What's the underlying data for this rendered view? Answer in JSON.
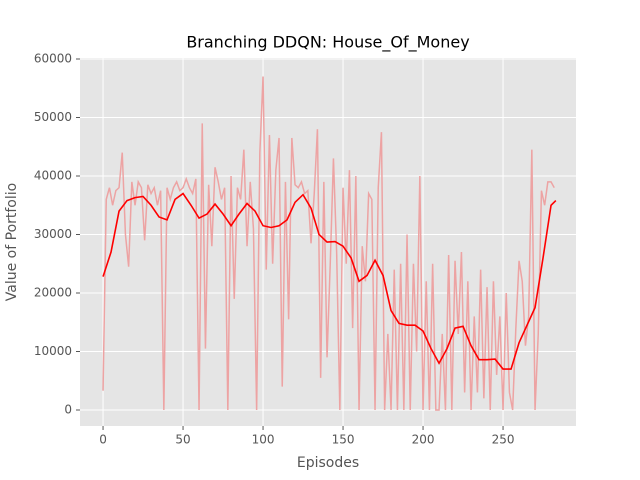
{
  "chart_data": {
    "type": "line",
    "title": "Branching DDQN: House_Of_Money",
    "x_label": "Episodes",
    "y_label": "Value of Portfolio",
    "xlim": [
      -14.4,
      295.6
    ],
    "ylim": [
      -2735,
      60171
    ],
    "xticks": [
      0,
      50,
      100,
      150,
      200,
      250
    ],
    "yticks": [
      0,
      10000,
      20000,
      30000,
      40000,
      50000,
      60000
    ],
    "grid": true,
    "background": "#e5e5e5",
    "series": [
      {
        "color": "#eda3a3",
        "x": [
          0,
          2,
          4,
          6,
          8,
          10,
          12,
          14,
          16,
          18,
          20,
          22,
          24,
          26,
          28,
          30,
          32,
          34,
          36,
          38,
          40,
          42,
          44,
          46,
          48,
          50,
          52,
          54,
          56,
          58,
          60,
          62,
          64,
          66,
          68,
          70,
          72,
          74,
          76,
          78,
          80,
          82,
          84,
          86,
          88,
          90,
          92,
          94,
          96,
          98,
          100,
          102,
          104,
          106,
          108,
          110,
          112,
          114,
          116,
          118,
          120,
          122,
          124,
          126,
          128,
          130,
          132,
          134,
          136,
          138,
          140,
          142,
          144,
          146,
          148,
          150,
          152,
          154,
          156,
          158,
          160,
          162,
          164,
          166,
          168,
          170,
          172,
          174,
          176,
          178,
          180,
          182,
          184,
          186,
          188,
          190,
          192,
          194,
          196,
          198,
          200,
          202,
          204,
          206,
          208,
          210,
          212,
          214,
          216,
          218,
          220,
          222,
          224,
          226,
          228,
          230,
          232,
          234,
          236,
          238,
          240,
          242,
          244,
          246,
          248,
          250,
          252,
          254,
          256,
          258,
          260,
          262,
          264,
          266,
          268,
          270,
          272,
          274,
          276,
          278,
          280,
          282
        ],
        "values": [
          3300,
          36000,
          38000,
          35000,
          37500,
          38000,
          44000,
          30000,
          24500,
          39000,
          35000,
          39000,
          38000,
          29000,
          38500,
          37000,
          38000,
          35000,
          37500,
          0,
          38000,
          36000,
          38000,
          39000,
          37500,
          38000,
          39500,
          38000,
          37000,
          39500,
          0,
          49000,
          10500,
          38500,
          28000,
          41500,
          39000,
          36000,
          38000,
          0,
          40000,
          19000,
          38000,
          36000,
          44500,
          28000,
          39000,
          31000,
          0,
          44000,
          57000,
          24000,
          47000,
          25000,
          41000,
          46500,
          4000,
          39000,
          15500,
          46500,
          38500,
          38000,
          39000,
          37000,
          37500,
          28500,
          37000,
          48000,
          5500,
          39000,
          9000,
          25000,
          43000,
          27000,
          0,
          38000,
          25000,
          41000,
          14000,
          40000,
          0,
          28000,
          22000,
          37000,
          36000,
          0,
          38000,
          47500,
          0,
          13000,
          0,
          24000,
          0,
          25000,
          0,
          30000,
          0,
          25000,
          10000,
          40000,
          0,
          22000,
          0,
          25000,
          0,
          0,
          13000,
          0,
          26500,
          0,
          25500,
          13000,
          27000,
          3000,
          22000,
          0,
          16000,
          3000,
          24000,
          2000,
          21000,
          0,
          22000,
          6000,
          16000,
          0,
          20000,
          3000,
          0,
          14000,
          25500,
          22000,
          11000,
          16000,
          44500,
          0,
          13000,
          37500,
          35000,
          39000,
          39000,
          38000
        ]
      },
      {
        "color": "#ff0000",
        "x": [
          0,
          5,
          10,
          15,
          20,
          25,
          30,
          35,
          40,
          45,
          50,
          55,
          60,
          65,
          70,
          75,
          80,
          85,
          90,
          95,
          100,
          105,
          110,
          115,
          120,
          125,
          130,
          135,
          140,
          145,
          150,
          155,
          160,
          165,
          170,
          175,
          180,
          185,
          190,
          195,
          200,
          205,
          210,
          215,
          220,
          225,
          230,
          235,
          240,
          245,
          250,
          255,
          260,
          265,
          270,
          275,
          280,
          283
        ],
        "values": [
          22800,
          27000,
          34000,
          35800,
          36300,
          36500,
          35000,
          33000,
          32500,
          36000,
          37000,
          35000,
          32800,
          33500,
          35200,
          33500,
          31500,
          33500,
          35300,
          34000,
          31500,
          31200,
          31500,
          32500,
          35500,
          36800,
          34500,
          30000,
          28700,
          28800,
          28000,
          26000,
          22000,
          23000,
          25600,
          23000,
          17000,
          14800,
          14500,
          14500,
          13500,
          10500,
          8000,
          10500,
          14000,
          14300,
          11000,
          8600,
          8600,
          8700,
          7000,
          7000,
          11500,
          14500,
          17500,
          26000,
          35000,
          35800
        ]
      }
    ]
  }
}
